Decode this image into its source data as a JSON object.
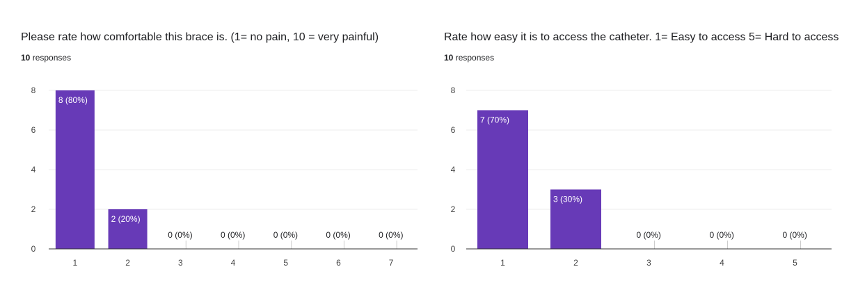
{
  "chart_data": [
    {
      "type": "bar",
      "title": "Please rate how comfortable this brace is. (1= no pain, 10 = very painful)",
      "responses_count": "10",
      "responses_label": "responses",
      "categories": [
        "1",
        "2",
        "3",
        "4",
        "5",
        "6",
        "7"
      ],
      "values": [
        8,
        2,
        0,
        0,
        0,
        0,
        0
      ],
      "data_labels": [
        "8 (80%)",
        "2 (20%)",
        "0 (0%)",
        "0 (0%)",
        "0 (0%)",
        "0 (0%)",
        "0 (0%)"
      ],
      "ylim": [
        0,
        8
      ],
      "yticks": [
        0,
        2,
        4,
        6,
        8
      ],
      "grid": true,
      "bar_color": "#673ab7"
    },
    {
      "type": "bar",
      "title": "Rate how easy it is to access the catheter.  1= Easy  to access  5= Hard to access",
      "responses_count": "10",
      "responses_label": "responses",
      "categories": [
        "1",
        "2",
        "3",
        "4",
        "5"
      ],
      "values": [
        7,
        3,
        0,
        0,
        0
      ],
      "data_labels": [
        "7 (70%)",
        "3 (30%)",
        "0 (0%)",
        "0 (0%)",
        "0 (0%)"
      ],
      "ylim": [
        0,
        8
      ],
      "yticks": [
        0,
        2,
        4,
        6,
        8
      ],
      "grid": true,
      "bar_color": "#673ab7"
    }
  ]
}
